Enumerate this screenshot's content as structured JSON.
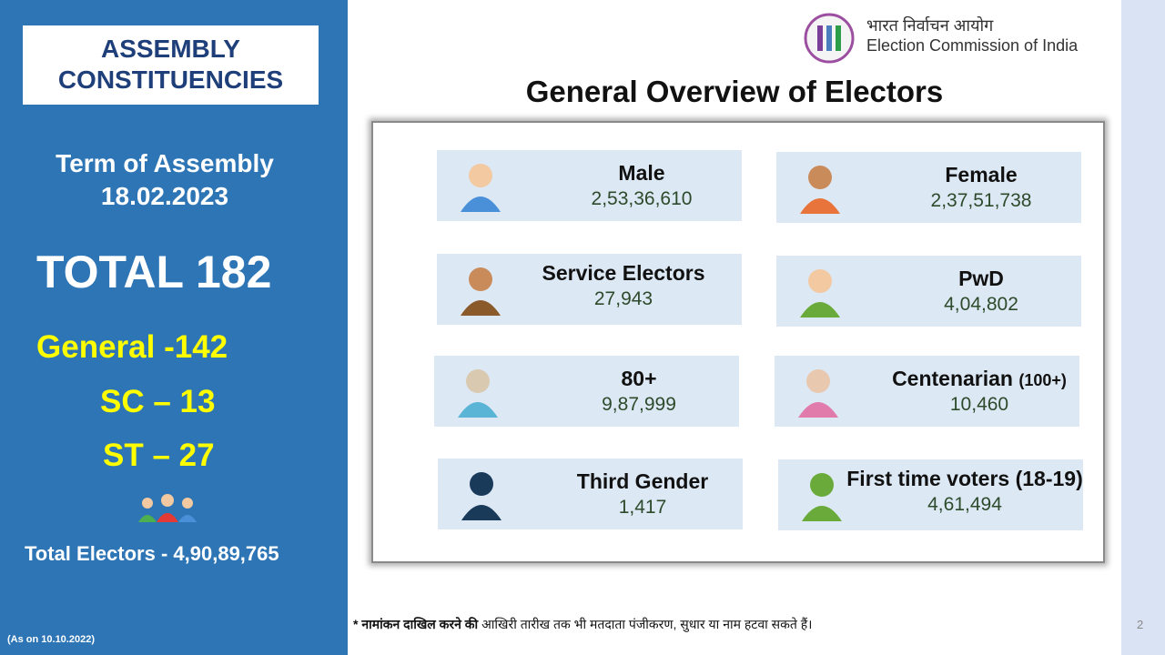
{
  "sidebar": {
    "badge_line1": "ASSEMBLY",
    "badge_line2": "CONSTITUENCIES",
    "term_label": "Term of Assembly",
    "term_date": "18.02.2023",
    "total": "TOTAL 182",
    "general": "General -142",
    "sc": "SC – 13",
    "st": "ST – 27",
    "total_electors": "Total Electors - 4,90,89,765",
    "as_on": "(As on 10.10.2022)"
  },
  "header": {
    "org_hindi": "भारत निर्वाचन आयोग",
    "org_english": "Election Commission of India",
    "title": "General Overview of Electors"
  },
  "cards": [
    {
      "label": "Male",
      "value": "2,53,36,610"
    },
    {
      "label": "Female",
      "value": "2,37,51,738"
    },
    {
      "label": "Service Electors",
      "value": "27,943"
    },
    {
      "label": "PwD",
      "value": "4,04,802"
    },
    {
      "label": "80+",
      "value": "9,87,999"
    },
    {
      "label": "Centenarian",
      "note": "(100+)",
      "value": "10,460"
    },
    {
      "label": "Third Gender",
      "value": "1,417"
    },
    {
      "label": "First time voters (18-19)",
      "value": "4,61,494"
    }
  ],
  "footnote": {
    "bold": "* नामांकन दाखिल करने की",
    "rest": "आखिरी तारीख तक भी मतदाता पंजीकरण, सुधार या नाम हटवा सकते हैं।"
  },
  "page_number": "2"
}
